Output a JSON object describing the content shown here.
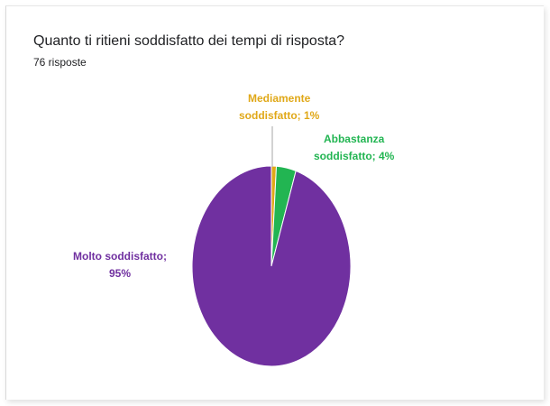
{
  "title": "Quanto ti ritieni soddisfatto dei tempi di risposta?",
  "subtitle": "76 risposte",
  "chart_data": {
    "type": "pie",
    "slices": [
      {
        "label_line1": "Mediamente",
        "label_line2": "soddisfatto; 1%",
        "value": 1,
        "color": "#E0A818"
      },
      {
        "label_line1": "Abbastanza",
        "label_line2": "soddisfatto; 4%",
        "value": 4,
        "color": "#22B552"
      },
      {
        "label_line1": "Molto soddisfatto;",
        "label_line2": "95%",
        "value": 95,
        "color": "#7030A0"
      }
    ],
    "start": "12 o'clock",
    "direction": "clockwise",
    "legend": "none"
  }
}
